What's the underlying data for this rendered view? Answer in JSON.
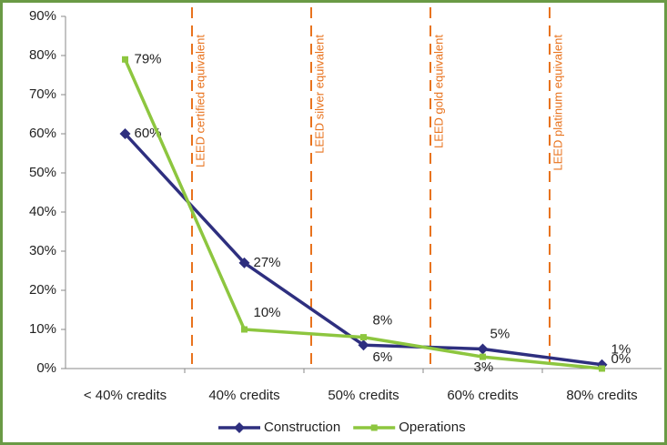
{
  "chart_data": {
    "type": "line",
    "categories": [
      "< 40% credits",
      "40% credits",
      "50% credits",
      "60% credits",
      "80% credits"
    ],
    "series": [
      {
        "name": "Construction",
        "color": "#2e2f7f",
        "values": [
          60,
          27,
          6,
          5,
          1
        ],
        "value_labels": [
          "60%",
          "27%",
          "6%",
          "5%",
          "1%"
        ]
      },
      {
        "name": "Operations",
        "color": "#8dc63f",
        "values": [
          79,
          10,
          8,
          3,
          0
        ],
        "value_labels": [
          "79%",
          "10%",
          "8%",
          "3%",
          "0%"
        ]
      }
    ],
    "annotations": [
      "LEED certified equivalent",
      "LEED silver equivalent",
      "LEED gold equivalent",
      "LEED platinum equivalent"
    ],
    "annotation_color": "#e8731e",
    "ylim": [
      0,
      90
    ],
    "yticks": [
      {
        "value": 0,
        "label": "0%"
      },
      {
        "value": 10,
        "label": "10%"
      },
      {
        "value": 20,
        "label": "20%"
      },
      {
        "value": 30,
        "label": "30%"
      },
      {
        "value": 40,
        "label": "40%"
      },
      {
        "value": 50,
        "label": "50%"
      },
      {
        "value": 60,
        "label": "60%"
      },
      {
        "value": 70,
        "label": "70%"
      },
      {
        "value": 80,
        "label": "80%"
      },
      {
        "value": 90,
        "label": "90%"
      }
    ],
    "legend": "bottom"
  }
}
